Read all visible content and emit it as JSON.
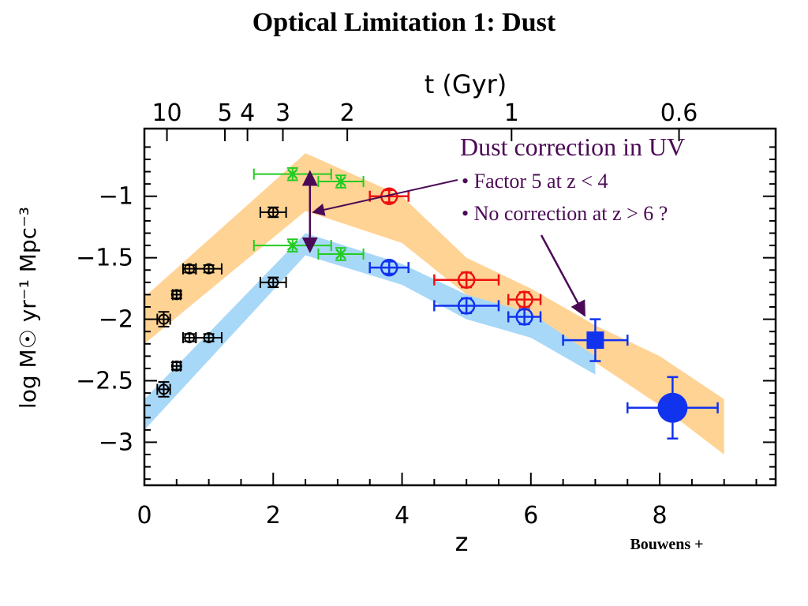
{
  "slide_title": "Optical Limitation 1: Dust",
  "credit": "Bouwens +",
  "colors": {
    "orange_band": "#ffd394",
    "blue_band": "#a8d8f8",
    "green": "#22cc22",
    "black": "#000000",
    "red": "#ee1111",
    "blue": "#1133ee",
    "annotation": "#4b0a55"
  },
  "chart_data": {
    "type": "scatter",
    "xlabel": "z",
    "ylabel": "log M☉ yr⁻¹ Mpc⁻³",
    "top_axis_label": "t (Gyr)",
    "xlim": [
      0,
      9.8
    ],
    "ylim": [
      -3.35,
      -0.45
    ],
    "x_ticks": [
      0,
      2,
      4,
      6,
      8
    ],
    "y_ticks": [
      -1,
      -1.5,
      -2,
      -2.5,
      -3
    ],
    "y_tick_labels": [
      "−1",
      "−1.5",
      "−2",
      "−2.5",
      "−3"
    ],
    "top_ticks": [
      {
        "label": "10",
        "z": 0.35
      },
      {
        "label": "5",
        "z": 1.25
      },
      {
        "label": "4",
        "z": 1.6
      },
      {
        "label": "3",
        "z": 2.15
      },
      {
        "label": "2",
        "z": 3.15
      },
      {
        "label": "1",
        "z": 5.7
      },
      {
        "label": "0.6",
        "z": 8.3
      }
    ],
    "bands": [
      {
        "name": "orange",
        "upper": [
          [
            0,
            -1.82
          ],
          [
            2.5,
            -0.65
          ],
          [
            4,
            -1.0
          ],
          [
            5,
            -1.5
          ],
          [
            6,
            -1.75
          ],
          [
            7,
            -2.05
          ],
          [
            8,
            -2.3
          ],
          [
            9,
            -2.65
          ]
        ],
        "lower": [
          [
            0,
            -2.2
          ],
          [
            2.5,
            -1.12
          ],
          [
            4,
            -1.38
          ],
          [
            5,
            -1.8
          ],
          [
            6,
            -2.0
          ],
          [
            7,
            -2.35
          ],
          [
            8,
            -2.7
          ],
          [
            9,
            -3.1
          ]
        ]
      },
      {
        "name": "blue",
        "upper": [
          [
            0,
            -2.65
          ],
          [
            2.5,
            -1.3
          ],
          [
            4,
            -1.55
          ],
          [
            5,
            -1.8
          ],
          [
            6,
            -1.95
          ],
          [
            7,
            -2.3
          ]
        ],
        "lower": [
          [
            0,
            -2.9
          ],
          [
            2.5,
            -1.48
          ],
          [
            4,
            -1.72
          ],
          [
            5,
            -2.0
          ],
          [
            6,
            -2.15
          ],
          [
            7,
            -2.45
          ]
        ]
      }
    ],
    "series": [
      {
        "name": "black",
        "marker": "circle-small",
        "points": [
          {
            "x": 0.3,
            "y": -2.0,
            "xerr": 0.1,
            "yerr": 0.06
          },
          {
            "x": 0.5,
            "y": -1.8,
            "xerr": 0.06,
            "yerr": 0.03
          },
          {
            "x": 0.7,
            "y": -1.59,
            "xerr": 0.1,
            "yerr": 0.03
          },
          {
            "x": 1.0,
            "y": -1.59,
            "xerr": 0.2,
            "yerr": 0.03
          },
          {
            "x": 2.0,
            "y": -1.13,
            "xerr": 0.2,
            "yerr": 0.04
          },
          {
            "x": 0.7,
            "y": -2.15,
            "xerr": 0.1,
            "yerr": 0.03
          },
          {
            "x": 1.0,
            "y": -2.15,
            "xerr": 0.2,
            "yerr": 0.03
          },
          {
            "x": 0.5,
            "y": -2.38,
            "xerr": 0.06,
            "yerr": 0.03
          },
          {
            "x": 0.3,
            "y": -2.57,
            "xerr": 0.1,
            "yerr": 0.06
          },
          {
            "x": 2.0,
            "y": -1.7,
            "xerr": 0.2,
            "yerr": 0.04
          }
        ]
      },
      {
        "name": "green",
        "marker": "cross",
        "points": [
          {
            "x": 2.3,
            "y": -0.82,
            "xerr": 0.6,
            "yerr": 0.05
          },
          {
            "x": 3.05,
            "y": -0.88,
            "xerr": 0.35,
            "yerr": 0.05
          },
          {
            "x": 2.3,
            "y": -1.4,
            "xerr": 0.6,
            "yerr": 0.05
          },
          {
            "x": 3.05,
            "y": -1.47,
            "xerr": 0.35,
            "yerr": 0.05
          }
        ]
      },
      {
        "name": "red",
        "marker": "circle",
        "points": [
          {
            "x": 3.8,
            "y": -1.0,
            "xerr": 0.3,
            "yerr": 0.05
          },
          {
            "x": 5.0,
            "y": -1.68,
            "xerr": 0.5,
            "yerr": 0.06
          },
          {
            "x": 5.9,
            "y": -1.84,
            "xerr": 0.25,
            "yerr": 0.06
          }
        ]
      },
      {
        "name": "blue",
        "marker": "circle",
        "points": [
          {
            "x": 3.8,
            "y": -1.58,
            "xerr": 0.3,
            "yerr": 0.05
          },
          {
            "x": 5.0,
            "y": -1.89,
            "xerr": 0.5,
            "yerr": 0.06
          },
          {
            "x": 5.9,
            "y": -1.98,
            "xerr": 0.25,
            "yerr": 0.06
          }
        ]
      },
      {
        "name": "blue-square",
        "marker": "square",
        "points": [
          {
            "x": 7.0,
            "y": -2.17,
            "xerr": 0.5,
            "yerr": 0.17
          }
        ]
      },
      {
        "name": "blue-big",
        "marker": "big-circle",
        "points": [
          {
            "x": 8.2,
            "y": -2.72,
            "xerr": 0.7,
            "yerr": 0.25
          }
        ]
      }
    ],
    "annotations": {
      "heading": "Dust correction in UV",
      "bullet1": "• Factor 5 at z < 4",
      "bullet2": "• No correction at z > 6 ?"
    },
    "correction_arrow": {
      "x": 2.57,
      "y_top": -0.8,
      "y_bottom": -1.45
    }
  }
}
